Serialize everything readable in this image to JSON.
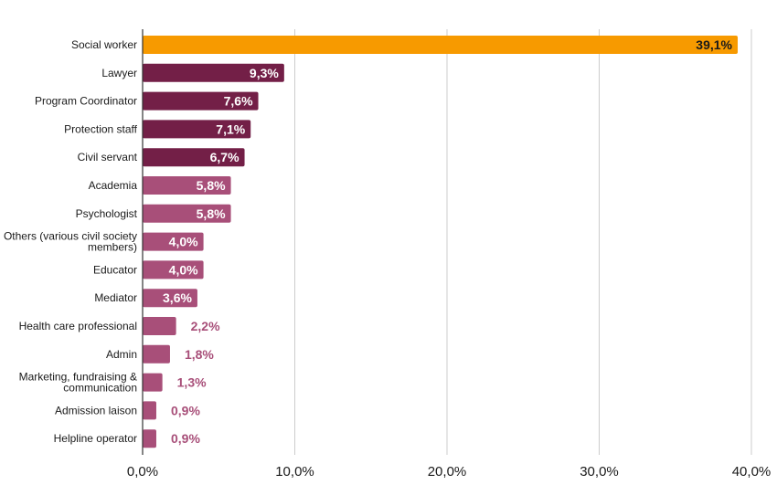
{
  "chart_data": {
    "type": "bar",
    "orientation": "horizontal",
    "title": "",
    "xlabel": "",
    "ylabel": "",
    "xlim": [
      0,
      40
    ],
    "x_ticks": [
      0,
      10,
      20,
      30,
      40
    ],
    "x_tick_labels": [
      "0,0%",
      "10,0%",
      "20,0%",
      "30,0%",
      "40,0%"
    ],
    "grid": "vertical",
    "legend": "none",
    "categories": [
      [
        "Social worker"
      ],
      [
        "Lawyer"
      ],
      [
        "Program Coordinator"
      ],
      [
        "Protection staff"
      ],
      [
        "Civil servant"
      ],
      [
        "Academia"
      ],
      [
        "Psychologist"
      ],
      [
        "Others (various civil society",
        "members)"
      ],
      [
        "Educator"
      ],
      [
        "Mediator"
      ],
      [
        "Health care professional"
      ],
      [
        "Admin"
      ],
      [
        "Marketing, fundraising &",
        "communication"
      ],
      [
        "Admission laison"
      ],
      [
        "Helpline operator"
      ]
    ],
    "values": [
      39.1,
      9.3,
      7.6,
      7.1,
      6.7,
      5.8,
      5.8,
      4.0,
      4.0,
      3.6,
      2.2,
      1.8,
      1.3,
      0.9,
      0.9
    ],
    "value_labels": [
      "39,1%",
      "9,3%",
      "7,6%",
      "7,1%",
      "6,7%",
      "5,8%",
      "5,8%",
      "4,0%",
      "4,0%",
      "3,6%",
      "2,2%",
      "1,8%",
      "1,3%",
      "0,9%",
      "0,9%"
    ],
    "bar_colors": [
      "#f79a00",
      "#731f47",
      "#731f47",
      "#731f47",
      "#731f47",
      "#a84f79",
      "#a84f79",
      "#a84f79",
      "#a84f79",
      "#a84f79",
      "#a84f79",
      "#a84f79",
      "#a84f79",
      "#a84f79",
      "#a84f79"
    ],
    "label_colors": {
      "inside_on_highlight": "#1a1a1a",
      "inside": "#ffffff",
      "outside": "#a84f79"
    },
    "grid_color": "#cccccc",
    "axis_color": "#333333"
  }
}
